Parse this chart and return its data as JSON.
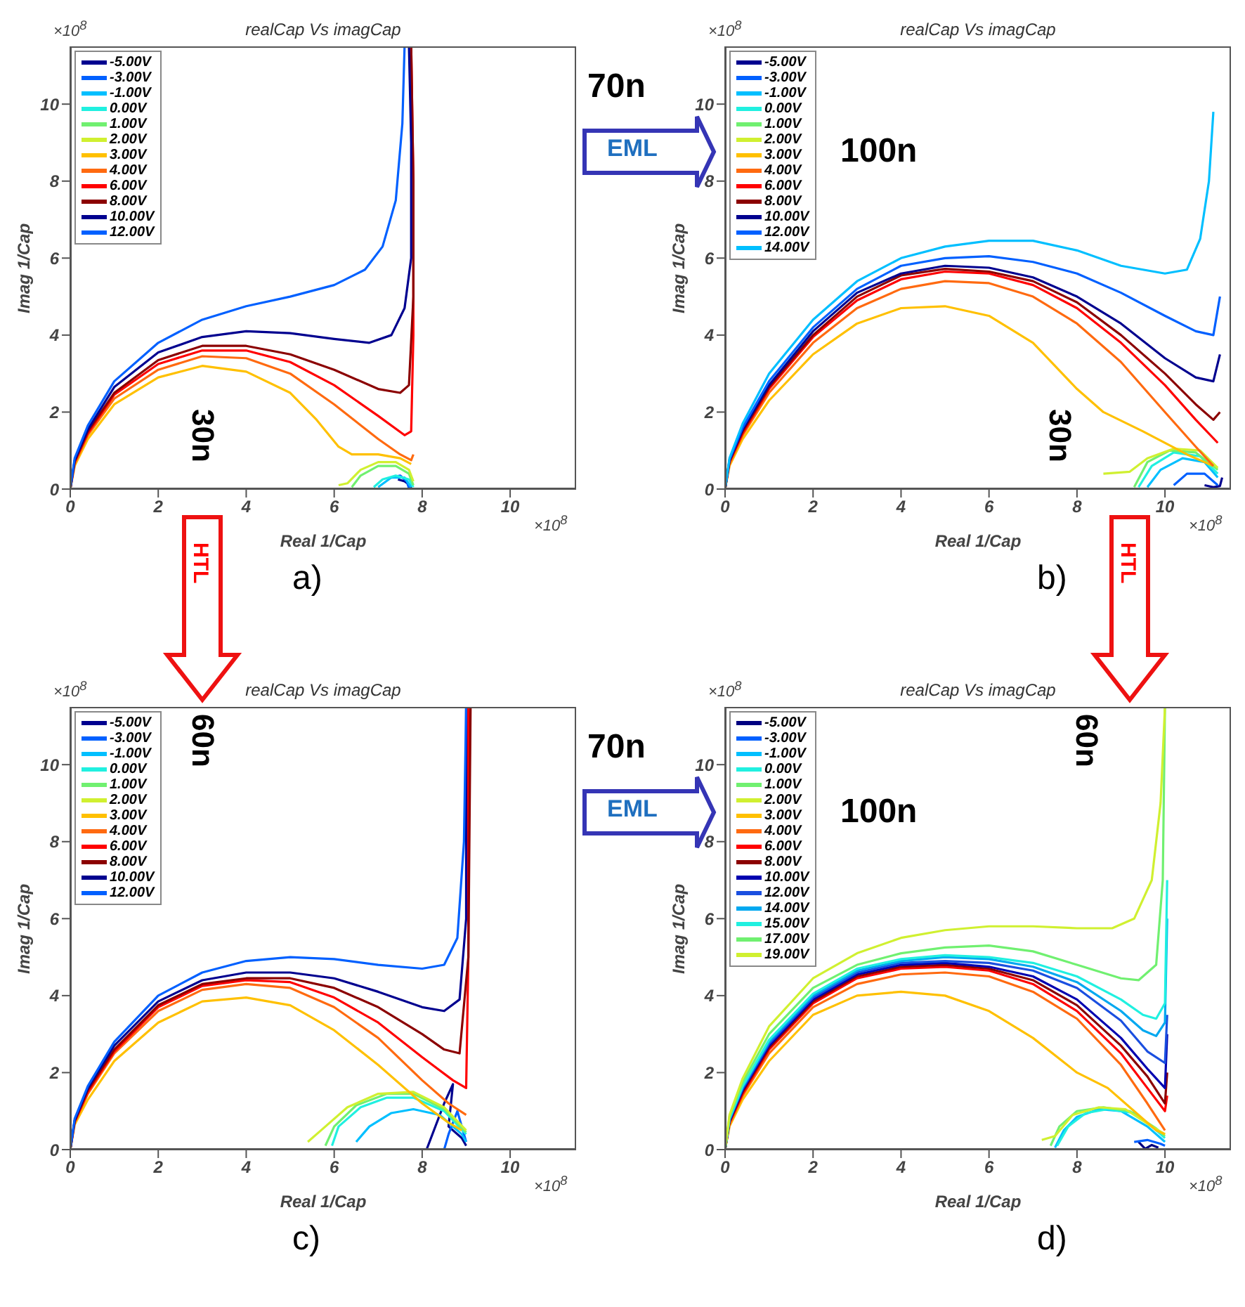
{
  "chart_data": [
    {
      "type": "line",
      "title": "realCap Vs imagCap",
      "xlabel": "Real 1/Cap",
      "ylabel": "Imag 1/Cap",
      "xlim": [
        0,
        11.5
      ],
      "ylim": [
        0,
        11.5
      ],
      "xticks": [
        0,
        2,
        4,
        6,
        8,
        10
      ],
      "yticks": [
        0,
        2,
        4,
        6,
        8,
        10
      ],
      "legend": "top left",
      "line_style": "solid",
      "annotations": [
        "×10$^{8}$",
        "×10$^{8}$",
        "a)",
        "70n",
        "EML",
        "30n",
        "HTL"
      ],
      "series": [
        {
          "name": "-5.00V",
          "color": "#00008f",
          "x": [
            7.45,
            7.6,
            7.72,
            7.75
          ],
          "values": [
            0.25,
            0.2,
            0.1,
            0
          ]
        },
        {
          "name": "-3.00V",
          "color": "#0060ff",
          "x": [
            7.3,
            7.5,
            7.65,
            7.7
          ],
          "values": [
            0.3,
            0.35,
            0.2,
            0.02
          ]
        },
        {
          "name": "-1.00V",
          "color": "#00bfff",
          "x": [
            7.0,
            7.3,
            7.6,
            7.75
          ],
          "values": [
            0.05,
            0.3,
            0.3,
            0.05
          ]
        },
        {
          "name": "0.00V",
          "color": "#20f0e0",
          "x": [
            6.9,
            7.1,
            7.4,
            7.7,
            7.8
          ],
          "values": [
            0.05,
            0.25,
            0.35,
            0.25,
            0.05
          ]
        },
        {
          "name": "1.00V",
          "color": "#70f070",
          "x": [
            6.4,
            6.6,
            7.0,
            7.4,
            7.7,
            7.8
          ],
          "values": [
            0.05,
            0.35,
            0.6,
            0.6,
            0.4,
            0.1
          ]
        },
        {
          "name": "2.00V",
          "color": "#d0f030",
          "x": [
            6.1,
            6.3,
            6.6,
            7.0,
            7.4,
            7.7,
            7.8
          ],
          "values": [
            0.1,
            0.15,
            0.5,
            0.7,
            0.7,
            0.5,
            0.2
          ]
        },
        {
          "name": "3.00V",
          "color": "#ffc000",
          "x": [
            0,
            0.1,
            0.4,
            1,
            2,
            3,
            4,
            5,
            5.6,
            6.1,
            6.4,
            7,
            7.5,
            7.75
          ],
          "values": [
            0,
            0.6,
            1.3,
            2.2,
            2.9,
            3.2,
            3.05,
            2.5,
            1.8,
            1.1,
            0.9,
            0.9,
            0.8,
            0.65
          ]
        },
        {
          "name": "4.00V",
          "color": "#ff6a10",
          "x": [
            0,
            0.1,
            0.4,
            1,
            2,
            3,
            4,
            5,
            6,
            7,
            7.5,
            7.75,
            7.8
          ],
          "values": [
            0,
            0.65,
            1.4,
            2.35,
            3.1,
            3.45,
            3.4,
            3.0,
            2.2,
            1.3,
            0.9,
            0.75,
            0.9
          ]
        },
        {
          "name": "6.00V",
          "color": "#ff0000",
          "x": [
            0,
            0.1,
            0.4,
            1,
            2,
            3,
            4,
            5,
            6,
            7,
            7.6,
            7.75,
            7.8,
            7.8,
            7.75
          ],
          "values": [
            0,
            0.7,
            1.45,
            2.45,
            3.25,
            3.6,
            3.6,
            3.3,
            2.7,
            1.9,
            1.4,
            1.5,
            4,
            8,
            11.5
          ]
        },
        {
          "name": "8.00V",
          "color": "#8b0000",
          "x": [
            0,
            0.1,
            0.4,
            1,
            2,
            3,
            4,
            5,
            6,
            7,
            7.5,
            7.7,
            7.8,
            7.8,
            7.75
          ],
          "values": [
            0,
            0.72,
            1.5,
            2.5,
            3.35,
            3.72,
            3.72,
            3.5,
            3.1,
            2.6,
            2.5,
            2.7,
            5,
            8,
            11.5
          ]
        },
        {
          "name": "10.00V",
          "color": "#00008f",
          "x": [
            0,
            0.1,
            0.4,
            1,
            2,
            3,
            4,
            5,
            6,
            6.8,
            7.3,
            7.6,
            7.75,
            7.75,
            7.7
          ],
          "values": [
            0,
            0.75,
            1.55,
            2.65,
            3.55,
            3.95,
            4.1,
            4.05,
            3.9,
            3.8,
            4.0,
            4.7,
            6,
            9,
            11.5
          ]
        },
        {
          "name": "12.00V",
          "color": "#0060ff",
          "x": [
            0,
            0.1,
            0.4,
            1,
            2,
            3,
            4,
            5,
            6,
            6.7,
            7.1,
            7.4,
            7.55,
            7.6
          ],
          "values": [
            0,
            0.8,
            1.65,
            2.8,
            3.8,
            4.4,
            4.75,
            5.0,
            5.3,
            5.7,
            6.3,
            7.5,
            9.5,
            11.5
          ]
        }
      ]
    },
    {
      "type": "line",
      "title": "realCap Vs imagCap",
      "xlabel": "Real 1/Cap",
      "ylabel": "Imag 1/Cap",
      "xlim": [
        0,
        11.5
      ],
      "ylim": [
        0,
        11.5
      ],
      "xticks": [
        0,
        2,
        4,
        6,
        8,
        10
      ],
      "yticks": [
        0,
        2,
        4,
        6,
        8,
        10
      ],
      "legend": "top left",
      "line_style": "solid",
      "annotations": [
        "×10$^{8}$",
        "×10$^{8}$",
        "b)",
        "100n",
        "30n",
        "HTL"
      ],
      "series": [
        {
          "name": "-5.00V",
          "color": "#00008f",
          "x": [
            10.9,
            11.1,
            11.25,
            11.3
          ],
          "values": [
            0.1,
            0.05,
            0.08,
            0.3
          ]
        },
        {
          "name": "-3.00V",
          "color": "#0060ff",
          "x": [
            10.2,
            10.5,
            10.9,
            11.2
          ],
          "values": [
            0.1,
            0.4,
            0.4,
            0.1
          ]
        },
        {
          "name": "-1.00V",
          "color": "#00bfff",
          "x": [
            9.6,
            9.9,
            10.4,
            10.9,
            11.2
          ],
          "values": [
            0.05,
            0.5,
            0.8,
            0.7,
            0.3
          ]
        },
        {
          "name": "0.00V",
          "color": "#20f0e0",
          "x": [
            9.4,
            9.7,
            10.2,
            10.8,
            11.2
          ],
          "values": [
            0.05,
            0.6,
            0.95,
            0.85,
            0.4
          ]
        },
        {
          "name": "1.00V",
          "color": "#70f070",
          "x": [
            9.3,
            9.6,
            10.1,
            10.7,
            11.2
          ],
          "values": [
            0.05,
            0.7,
            1.0,
            0.95,
            0.5
          ]
        },
        {
          "name": "2.00V",
          "color": "#d0f030",
          "x": [
            8.6,
            9.2,
            9.6,
            10.2,
            10.8,
            11.2
          ],
          "values": [
            0.4,
            0.45,
            0.8,
            1.05,
            1.0,
            0.55
          ]
        },
        {
          "name": "3.00V",
          "color": "#ffc000",
          "x": [
            0,
            0.1,
            0.4,
            1,
            2,
            3,
            4,
            5,
            6,
            7,
            8,
            8.6,
            9.5,
            10.5,
            11.1
          ],
          "values": [
            0,
            0.6,
            1.3,
            2.3,
            3.5,
            4.3,
            4.7,
            4.75,
            4.5,
            3.8,
            2.6,
            2.0,
            1.5,
            0.9,
            0.6
          ]
        },
        {
          "name": "4.00V",
          "color": "#ff6a10",
          "x": [
            0,
            0.1,
            0.4,
            1,
            2,
            3,
            4,
            5,
            6,
            7,
            8,
            9,
            10,
            10.7,
            11.1
          ],
          "values": [
            0,
            0.65,
            1.4,
            2.5,
            3.8,
            4.7,
            5.2,
            5.4,
            5.35,
            5.0,
            4.3,
            3.3,
            2.0,
            1.1,
            0.6
          ]
        },
        {
          "name": "6.00V",
          "color": "#ff0000",
          "x": [
            0,
            0.1,
            0.4,
            1,
            2,
            3,
            4,
            5,
            6,
            7,
            8,
            9,
            10,
            10.7,
            11.2
          ],
          "values": [
            0,
            0.7,
            1.45,
            2.6,
            3.95,
            4.9,
            5.45,
            5.65,
            5.6,
            5.3,
            4.7,
            3.8,
            2.7,
            1.8,
            1.2
          ]
        },
        {
          "name": "8.00V",
          "color": "#8b0000",
          "x": [
            0,
            0.1,
            0.4,
            1,
            2,
            3,
            4,
            5,
            6,
            7,
            8,
            9,
            10,
            10.7,
            11.1,
            11.25
          ],
          "values": [
            0,
            0.72,
            1.5,
            2.65,
            4.0,
            5.0,
            5.55,
            5.72,
            5.65,
            5.4,
            4.85,
            4.0,
            3.0,
            2.2,
            1.8,
            2.0
          ]
        },
        {
          "name": "10.00V",
          "color": "#00008f",
          "x": [
            0,
            0.1,
            0.4,
            1,
            2,
            3,
            4,
            5,
            6,
            7,
            8,
            9,
            10,
            10.7,
            11.1,
            11.25
          ],
          "values": [
            0,
            0.74,
            1.55,
            2.7,
            4.1,
            5.1,
            5.6,
            5.8,
            5.75,
            5.5,
            5.0,
            4.3,
            3.4,
            2.9,
            2.8,
            3.5
          ]
        },
        {
          "name": "12.00V",
          "color": "#0060ff",
          "x": [
            0,
            0.1,
            0.4,
            1,
            2,
            3,
            4,
            5,
            6,
            7,
            8,
            9,
            10,
            10.7,
            11.1,
            11.25
          ],
          "values": [
            0,
            0.76,
            1.6,
            2.8,
            4.2,
            5.2,
            5.8,
            6.0,
            6.05,
            5.9,
            5.6,
            5.1,
            4.5,
            4.1,
            4.0,
            5.0
          ]
        },
        {
          "name": "14.00V",
          "color": "#00bfff",
          "x": [
            0,
            0.1,
            0.4,
            1,
            2,
            3,
            4,
            5,
            6,
            7,
            8,
            9,
            10,
            10.5,
            10.8,
            11,
            11.1
          ],
          "values": [
            0,
            0.8,
            1.7,
            3.0,
            4.4,
            5.4,
            6.0,
            6.3,
            6.45,
            6.45,
            6.2,
            5.8,
            5.6,
            5.7,
            6.5,
            8,
            9.8
          ]
        }
      ]
    },
    {
      "type": "line",
      "title": "realCap Vs imagCap",
      "xlabel": "Real 1/Cap",
      "ylabel": "Imag 1/Cap",
      "xlim": [
        0,
        11.5
      ],
      "ylim": [
        0,
        11.5
      ],
      "xticks": [
        0,
        2,
        4,
        6,
        8,
        10
      ],
      "yticks": [
        0,
        2,
        4,
        6,
        8,
        10
      ],
      "legend": "top left",
      "line_style": "solid",
      "annotations": [
        "×10$^{8}$",
        "×10$^{8}$",
        "c)",
        "60n",
        "70n",
        "EML"
      ],
      "series": [
        {
          "name": "-5.00V",
          "color": "#00008f",
          "x": [
            8.1,
            8.5,
            8.7,
            8.6,
            8.9,
            9.0
          ],
          "values": [
            0,
            1.2,
            1.7,
            0.6,
            0.3,
            0.1
          ]
        },
        {
          "name": "-3.00V",
          "color": "#0060ff",
          "x": [
            8.5,
            8.6,
            8.8,
            8.9,
            9.0
          ],
          "values": [
            0,
            0.4,
            1.0,
            0.6,
            0.2
          ]
        },
        {
          "name": "-1.00V",
          "color": "#00bfff",
          "x": [
            6.5,
            6.8,
            7.3,
            7.8,
            8.4,
            8.9,
            9.0
          ],
          "values": [
            0.2,
            0.6,
            0.95,
            1.05,
            0.9,
            0.4,
            0.2
          ]
        },
        {
          "name": "0.00V",
          "color": "#20f0e0",
          "x": [
            5.95,
            6.1,
            6.6,
            7.2,
            7.8,
            8.5,
            9.0
          ],
          "values": [
            0.1,
            0.6,
            1.1,
            1.35,
            1.35,
            1.0,
            0.4
          ]
        },
        {
          "name": "1.00V",
          "color": "#70f070",
          "x": [
            5.8,
            6.0,
            6.5,
            7.2,
            7.8,
            8.5,
            9.0
          ],
          "values": [
            0.1,
            0.6,
            1.15,
            1.45,
            1.45,
            1.05,
            0.45
          ]
        },
        {
          "name": "2.00V",
          "color": "#d0f030",
          "x": [
            5.4,
            5.7,
            6.3,
            7.0,
            7.8,
            8.5,
            9.0
          ],
          "values": [
            0.2,
            0.5,
            1.1,
            1.45,
            1.5,
            1.1,
            0.5
          ]
        },
        {
          "name": "3.00V",
          "color": "#ffc000",
          "x": [
            0,
            0.1,
            0.4,
            1,
            2,
            3,
            4,
            5,
            6,
            7,
            8,
            8.6,
            8.9
          ],
          "values": [
            0,
            0.65,
            1.3,
            2.3,
            3.3,
            3.85,
            3.95,
            3.75,
            3.1,
            2.2,
            1.2,
            0.7,
            0.5
          ]
        },
        {
          "name": "4.00V",
          "color": "#ff6a10",
          "x": [
            0,
            0.1,
            0.4,
            1,
            2,
            3,
            4,
            5,
            6,
            7,
            8,
            8.6,
            9.0
          ],
          "values": [
            0,
            0.7,
            1.45,
            2.5,
            3.6,
            4.15,
            4.3,
            4.2,
            3.7,
            2.9,
            1.8,
            1.2,
            0.9
          ]
        },
        {
          "name": "6.00V",
          "color": "#ff0000",
          "x": [
            0,
            0.1,
            0.4,
            1,
            2,
            3,
            4,
            5,
            6,
            7,
            8,
            8.7,
            9.0,
            9.05,
            9.05
          ],
          "values": [
            0,
            0.72,
            1.5,
            2.55,
            3.7,
            4.25,
            4.4,
            4.35,
            3.95,
            3.3,
            2.4,
            1.8,
            1.6,
            5,
            11.5
          ]
        },
        {
          "name": "8.00V",
          "color": "#8b0000",
          "x": [
            0,
            0.1,
            0.4,
            1,
            2,
            3,
            4,
            5,
            6,
            7,
            8,
            8.5,
            8.85,
            9.05,
            9.1
          ],
          "values": [
            0,
            0.74,
            1.55,
            2.6,
            3.75,
            4.3,
            4.45,
            4.45,
            4.2,
            3.7,
            3.0,
            2.6,
            2.5,
            5,
            11.5
          ]
        },
        {
          "name": "10.00V",
          "color": "#00008f",
          "x": [
            0,
            0.1,
            0.4,
            1,
            2,
            3,
            4,
            5,
            6,
            7,
            8,
            8.5,
            8.85,
            9.0,
            9.0
          ],
          "values": [
            0,
            0.76,
            1.6,
            2.7,
            3.85,
            4.4,
            4.6,
            4.6,
            4.45,
            4.1,
            3.7,
            3.6,
            3.9,
            6,
            11.5
          ]
        },
        {
          "name": "12.00V",
          "color": "#0060ff",
          "x": [
            0,
            0.1,
            0.4,
            1,
            2,
            3,
            4,
            5,
            6,
            7,
            8,
            8.5,
            8.8,
            8.95,
            9.0
          ],
          "values": [
            0,
            0.8,
            1.65,
            2.8,
            4.0,
            4.6,
            4.9,
            5.0,
            4.95,
            4.8,
            4.7,
            4.8,
            5.5,
            8,
            11.5
          ]
        }
      ]
    },
    {
      "type": "line",
      "title": "realCap Vs imagCap",
      "xlabel": "Real 1/Cap",
      "ylabel": "Imag 1/Cap",
      "xlim": [
        0,
        11.5
      ],
      "ylim": [
        0,
        11.5
      ],
      "xticks": [
        0,
        2,
        4,
        6,
        8,
        10
      ],
      "yticks": [
        0,
        2,
        4,
        6,
        8,
        10
      ],
      "legend": "top left",
      "line_style": "solid",
      "annotations": [
        "×10$^{8}$",
        "×10$^{8}$",
        "d)",
        "60n",
        "100n"
      ],
      "series": [
        {
          "name": "-5.00V",
          "color": "#000080",
          "x": [
            9.4,
            9.55,
            9.7,
            9.85
          ],
          "values": [
            0.2,
            0.02,
            0.12,
            0.05
          ]
        },
        {
          "name": "-3.00V",
          "color": "#0060ff",
          "x": [
            9.3,
            9.6,
            9.9,
            10.0
          ],
          "values": [
            0.2,
            0.25,
            0.15,
            0.1
          ]
        },
        {
          "name": "-1.00V",
          "color": "#00bfff",
          "x": [
            7.5,
            7.7,
            8.0,
            8.5,
            9.0,
            9.6,
            10.0
          ],
          "values": [
            0.05,
            0.5,
            0.85,
            1.05,
            1.0,
            0.6,
            0.2
          ]
        },
        {
          "name": "0.00V",
          "color": "#20f0e0",
          "x": [
            7.55,
            7.8,
            8.2,
            8.7,
            9.3,
            9.8,
            10.0
          ],
          "values": [
            0.1,
            0.6,
            0.95,
            1.05,
            0.95,
            0.5,
            0.3
          ]
        },
        {
          "name": "1.00V",
          "color": "#70f070",
          "x": [
            7.4,
            7.6,
            8.0,
            8.6,
            9.2,
            9.8,
            10.0
          ],
          "values": [
            0.1,
            0.6,
            1.0,
            1.1,
            1.0,
            0.55,
            0.35
          ]
        },
        {
          "name": "2.00V",
          "color": "#d0f030",
          "x": [
            7.2,
            7.5,
            7.9,
            8.5,
            9.1,
            9.7,
            10.0
          ],
          "values": [
            0.25,
            0.35,
            0.9,
            1.1,
            1.05,
            0.6,
            0.4
          ]
        },
        {
          "name": "3.00V",
          "color": "#ffc000",
          "x": [
            0,
            0.1,
            0.4,
            1,
            2,
            3,
            4,
            5,
            6,
            7,
            8,
            8.7,
            9.3,
            9.8,
            10
          ],
          "values": [
            0,
            0.6,
            1.3,
            2.3,
            3.5,
            4.0,
            4.1,
            4.0,
            3.6,
            2.9,
            2.0,
            1.6,
            1.0,
            0.5,
            0.4
          ]
        },
        {
          "name": "4.00V",
          "color": "#ff6a10",
          "x": [
            0,
            0.1,
            0.4,
            1,
            2,
            3,
            4,
            5,
            6,
            7,
            8,
            9,
            9.6,
            10
          ],
          "values": [
            0,
            0.65,
            1.4,
            2.5,
            3.7,
            4.3,
            4.55,
            4.6,
            4.5,
            4.1,
            3.4,
            2.2,
            1.2,
            0.5
          ]
        },
        {
          "name": "6.00V",
          "color": "#ff0000",
          "x": [
            0,
            0.1,
            0.4,
            1,
            2,
            3,
            4,
            5,
            6,
            7,
            8,
            9,
            9.6,
            10,
            10.05
          ],
          "values": [
            0,
            0.7,
            1.45,
            2.6,
            3.8,
            4.45,
            4.7,
            4.75,
            4.65,
            4.3,
            3.6,
            2.5,
            1.6,
            1.0,
            1.4
          ]
        },
        {
          "name": "8.00V",
          "color": "#8b0000",
          "x": [
            0,
            0.1,
            0.4,
            1,
            2,
            3,
            4,
            5,
            6,
            7,
            8,
            9,
            9.6,
            10,
            10.05
          ],
          "values": [
            0,
            0.72,
            1.5,
            2.65,
            3.85,
            4.5,
            4.75,
            4.8,
            4.7,
            4.4,
            3.75,
            2.7,
            1.9,
            1.2,
            2.0
          ]
        },
        {
          "name": "10.00V",
          "color": "#0000b0",
          "x": [
            0,
            0.1,
            0.4,
            1,
            2,
            3,
            4,
            5,
            6,
            7,
            8,
            9,
            9.6,
            10,
            10.05
          ],
          "values": [
            0,
            0.74,
            1.55,
            2.7,
            3.9,
            4.55,
            4.8,
            4.85,
            4.75,
            4.5,
            3.9,
            2.9,
            2.1,
            1.6,
            3.0
          ]
        },
        {
          "name": "12.00V",
          "color": "#1a4fe0",
          "x": [
            0,
            0.1,
            0.4,
            1,
            2,
            3,
            4,
            5,
            6,
            7,
            8,
            9,
            9.6,
            10,
            10.05
          ],
          "values": [
            0,
            0.76,
            1.58,
            2.75,
            3.95,
            4.6,
            4.85,
            4.9,
            4.85,
            4.65,
            4.2,
            3.35,
            2.55,
            2.25,
            3.5
          ]
        },
        {
          "name": "14.00V",
          "color": "#00a8f0",
          "x": [
            0,
            0.1,
            0.4,
            1,
            2,
            3,
            4,
            5,
            6,
            7,
            8,
            9,
            9.5,
            9.8,
            10,
            10.05
          ],
          "values": [
            0,
            0.78,
            1.62,
            2.8,
            4.0,
            4.65,
            4.9,
            5.0,
            4.95,
            4.75,
            4.35,
            3.6,
            3.1,
            2.95,
            3.3,
            6
          ]
        },
        {
          "name": "15.00V",
          "color": "#20f0e0",
          "x": [
            0,
            0.1,
            0.4,
            1,
            2,
            3,
            4,
            5,
            6,
            7,
            8,
            9,
            9.5,
            9.8,
            10,
            10.05
          ],
          "values": [
            0,
            0.8,
            1.65,
            2.85,
            4.05,
            4.7,
            4.95,
            5.05,
            5.0,
            4.85,
            4.5,
            3.9,
            3.5,
            3.4,
            3.8,
            7
          ]
        },
        {
          "name": "17.00V",
          "color": "#70f070",
          "x": [
            0,
            0.1,
            0.4,
            1,
            2,
            3,
            4,
            5,
            6,
            7,
            8,
            9,
            9.4,
            9.8,
            9.95,
            10.0
          ],
          "values": [
            0,
            0.85,
            1.75,
            3.0,
            4.2,
            4.8,
            5.1,
            5.25,
            5.3,
            5.15,
            4.8,
            4.45,
            4.4,
            4.8,
            7,
            11.5
          ]
        },
        {
          "name": "19.00V",
          "color": "#d0f030",
          "x": [
            0,
            0.1,
            0.4,
            1,
            2,
            3,
            4,
            5,
            6,
            7,
            8,
            8.8,
            9.3,
            9.7,
            9.9,
            10.0
          ],
          "values": [
            0,
            0.9,
            1.85,
            3.2,
            4.45,
            5.1,
            5.5,
            5.7,
            5.8,
            5.8,
            5.75,
            5.75,
            6.0,
            7.0,
            9,
            11.5
          ]
        }
      ]
    }
  ]
}
